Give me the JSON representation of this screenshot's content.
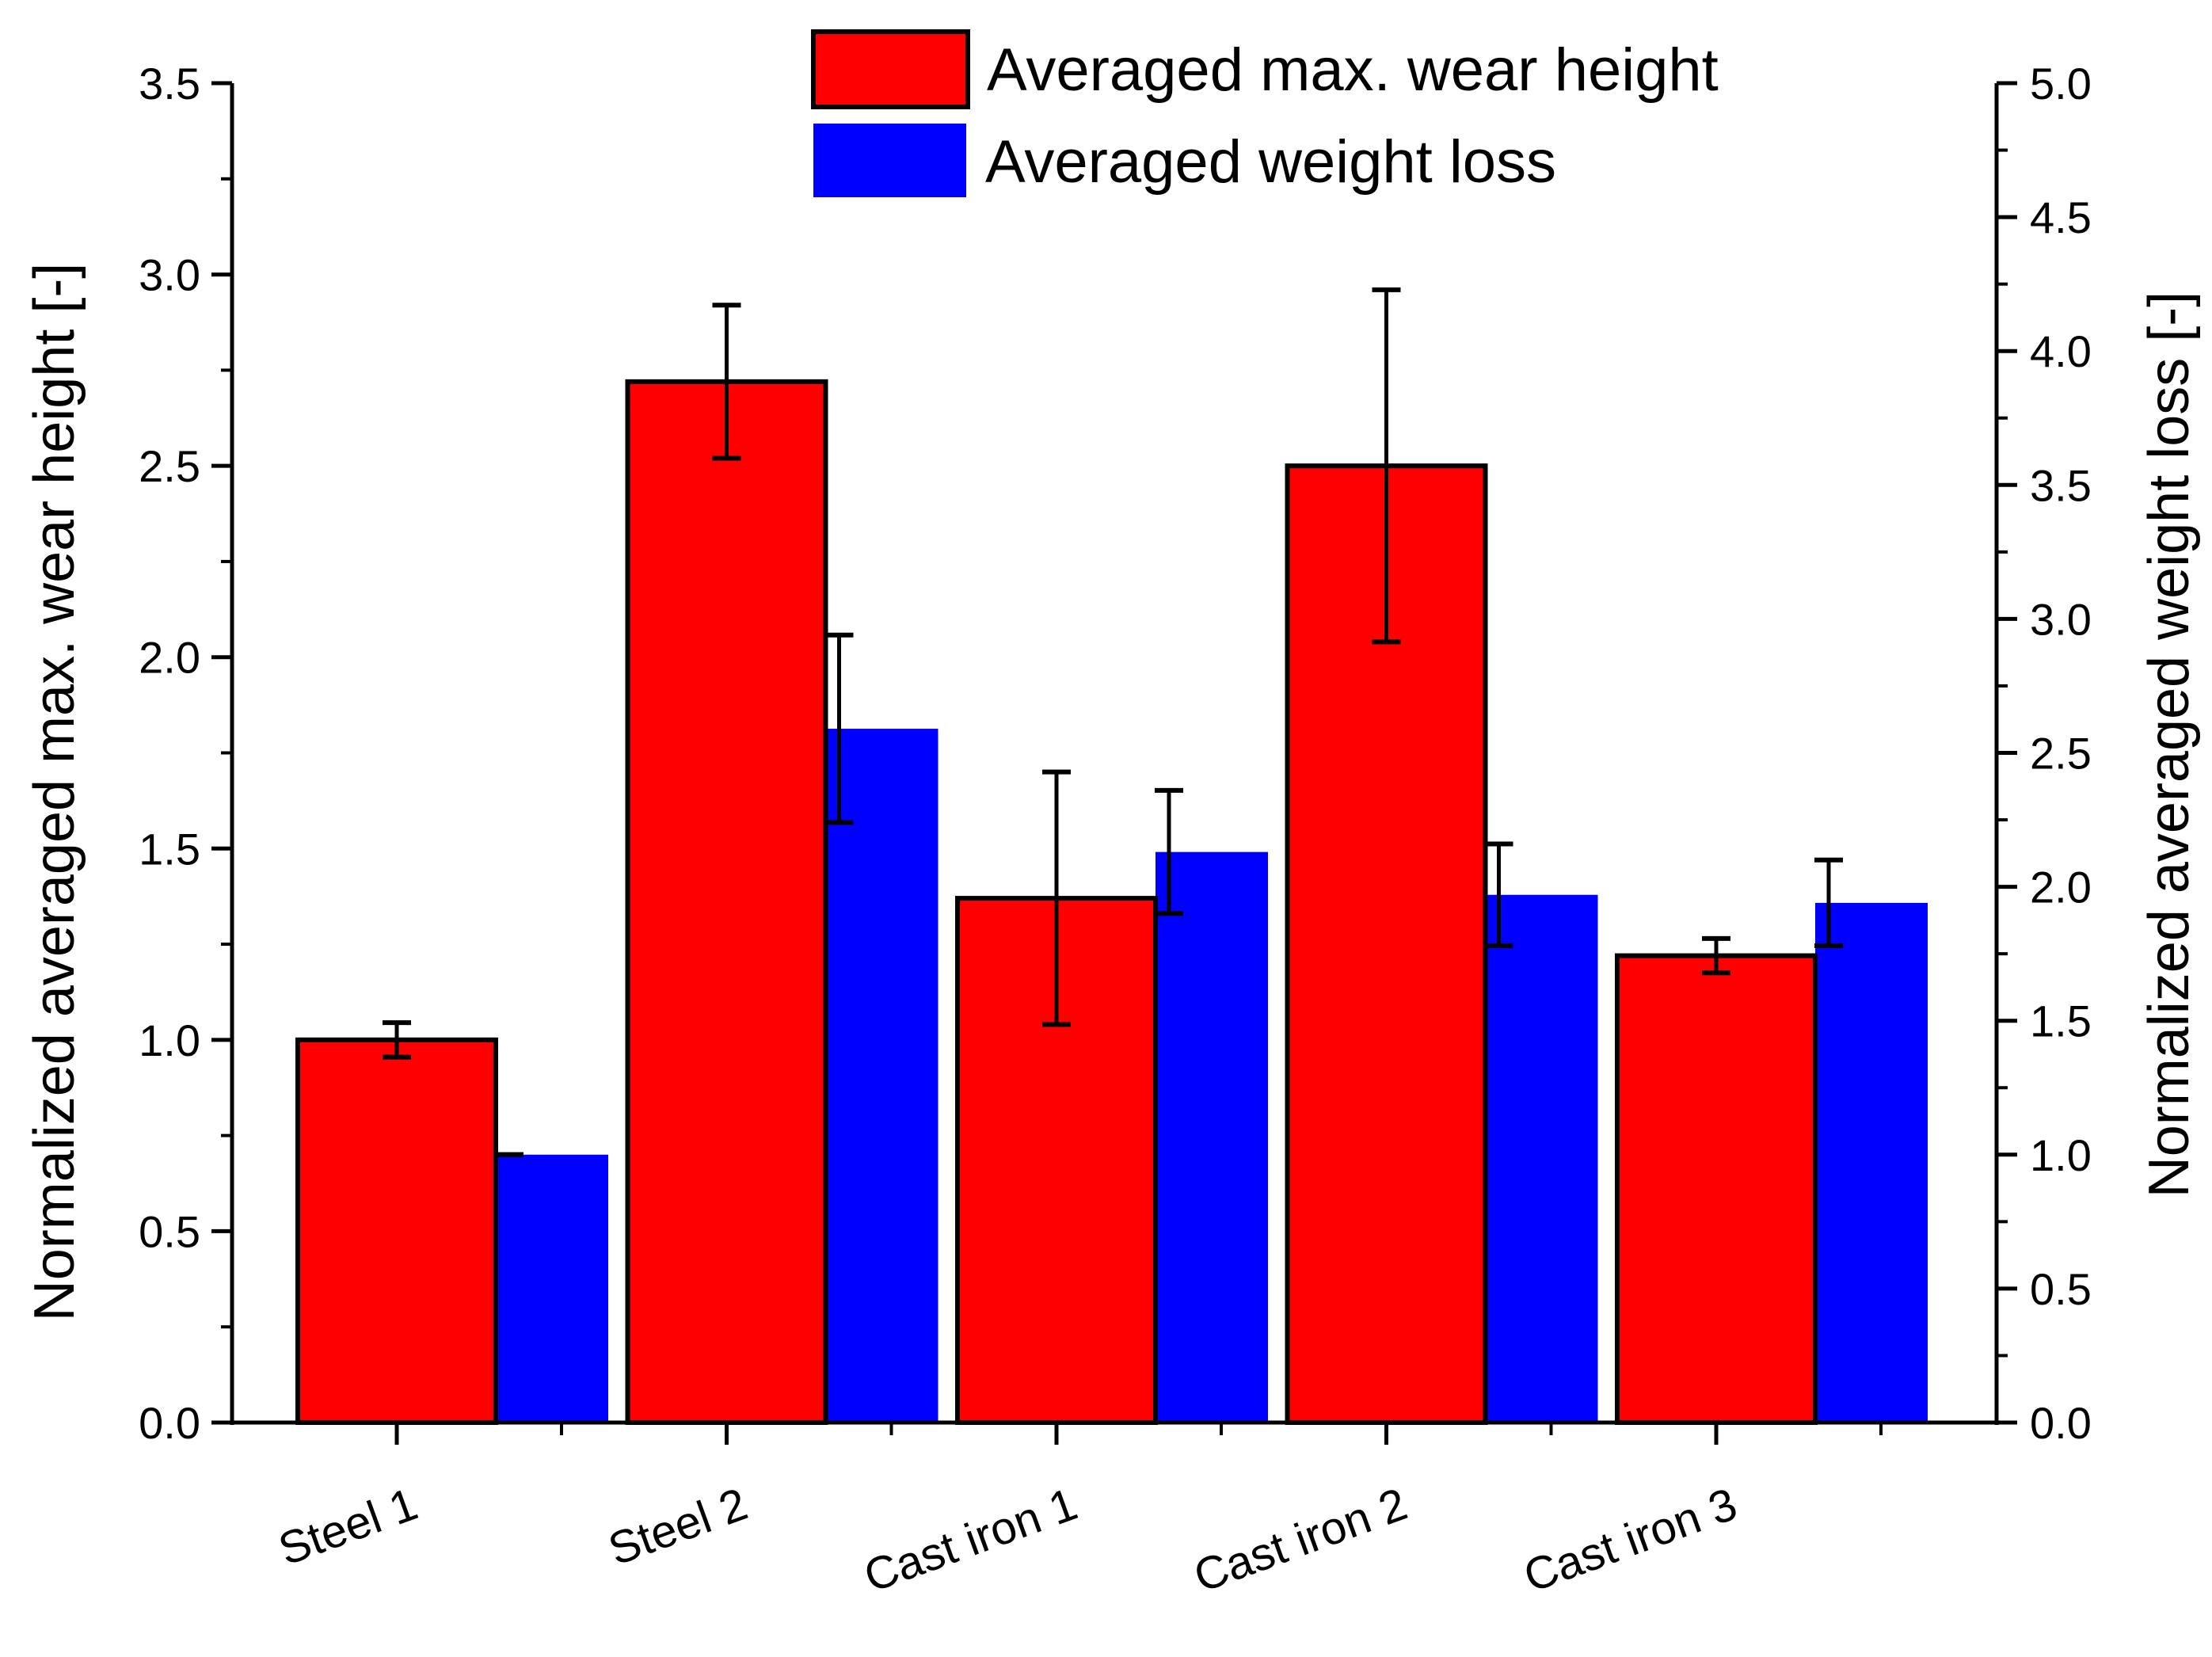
{
  "chart_data": {
    "type": "bar",
    "categories": [
      "Steel 1",
      "Steel 2",
      "Cast iron 1",
      "Cast iron 2",
      "Cast iron 3"
    ],
    "series": [
      {
        "name": "Averaged max. wear height",
        "axis": "left",
        "color": "#ff0000",
        "values": [
          1.0,
          2.72,
          1.37,
          2.5,
          1.22
        ],
        "error": [
          0.045,
          0.2,
          0.33,
          0.46,
          0.045
        ]
      },
      {
        "name": "Averaged weight loss",
        "axis": "right",
        "color": "#0000ff",
        "values": [
          1.0,
          2.59,
          2.13,
          1.97,
          1.94
        ],
        "error": [
          0.0,
          0.35,
          0.23,
          0.19,
          0.16
        ]
      }
    ],
    "ylabel_left": "Normalized averaged max. wear height [-]",
    "ylabel_right": "Normalized averaged weight loss [-]",
    "ylim_left": [
      0,
      3.5
    ],
    "ylim_right": [
      0,
      5.0
    ],
    "yticks_left": [
      "0.0",
      "0.5",
      "1.0",
      "1.5",
      "2.0",
      "2.5",
      "3.0",
      "3.5"
    ],
    "yticks_right": [
      "0.0",
      "0.5",
      "1.0",
      "1.5",
      "2.0",
      "2.5",
      "3.0",
      "3.5",
      "4.0",
      "4.5",
      "5.0"
    ],
    "legend_position": "top-center",
    "grid": false
  }
}
